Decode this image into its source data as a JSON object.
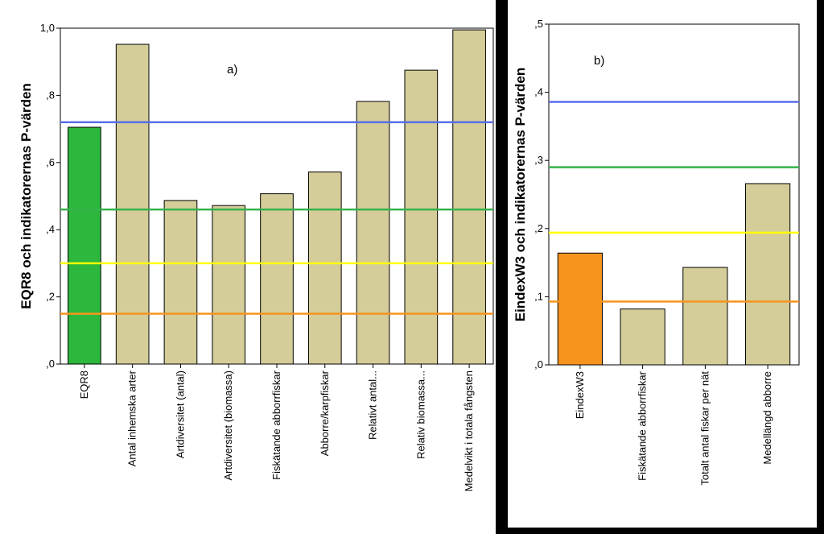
{
  "chart_data": [
    {
      "type": "bar",
      "annotation": "a)",
      "ylabel": "EQR8 och indikatorernas P-värden",
      "ylim": [
        0,
        1.0
      ],
      "yticks": [
        {
          "value": 0,
          "label": ",0"
        },
        {
          "value": 0.2,
          "label": ",2"
        },
        {
          "value": 0.4,
          "label": ",4"
        },
        {
          "value": 0.6,
          "label": ",6"
        },
        {
          "value": 0.8,
          "label": ",8"
        },
        {
          "value": 1.0,
          "label": "1,0"
        }
      ],
      "categories": [
        "EQR8",
        "Antal inhemska arter",
        "Artdiversitet (antal)",
        "Artdiversitet (biomassa)",
        "Fiskätande abborrfiskar",
        "Abborre/karpfiskar",
        "Relativt antal...",
        "Relativ biomassa...",
        "Medelvikt i totala fångsten"
      ],
      "values": [
        0.705,
        0.952,
        0.487,
        0.472,
        0.507,
        0.572,
        0.782,
        0.875,
        0.995
      ],
      "bar_colors": [
        "#2db83d",
        "#d4cd99",
        "#d4cd99",
        "#d4cd99",
        "#d4cd99",
        "#d4cd99",
        "#d4cd99",
        "#d4cd99",
        "#d4cd99"
      ],
      "reference_lines": [
        {
          "value": 0.72,
          "color": "#5a6ee8"
        },
        {
          "value": 0.46,
          "color": "#34b24a"
        },
        {
          "value": 0.3,
          "color": "#ffff00"
        },
        {
          "value": 0.15,
          "color": "#f7941d"
        }
      ]
    },
    {
      "type": "bar",
      "annotation": "b)",
      "ylabel": "EindexW3 och indikatorernas P-värden",
      "ylim": [
        0,
        0.5
      ],
      "yticks": [
        {
          "value": 0,
          "label": ",0"
        },
        {
          "value": 0.1,
          "label": ",1"
        },
        {
          "value": 0.2,
          "label": ",2"
        },
        {
          "value": 0.3,
          "label": ",3"
        },
        {
          "value": 0.4,
          "label": ",4"
        },
        {
          "value": 0.5,
          "label": ",5"
        }
      ],
      "categories": [
        "EindexW3",
        "Fiskätande abborrfiskar",
        "Totalt antal fiskar per nät",
        "Medellängd abborre"
      ],
      "values": [
        0.164,
        0.082,
        0.143,
        0.266
      ],
      "bar_colors": [
        "#f7941d",
        "#d4cd99",
        "#d4cd99",
        "#d4cd99"
      ],
      "reference_lines": [
        {
          "value": 0.386,
          "color": "#5a6ee8"
        },
        {
          "value": 0.29,
          "color": "#34b24a"
        },
        {
          "value": 0.194,
          "color": "#ffff00"
        },
        {
          "value": 0.093,
          "color": "#f7941d"
        }
      ]
    }
  ]
}
